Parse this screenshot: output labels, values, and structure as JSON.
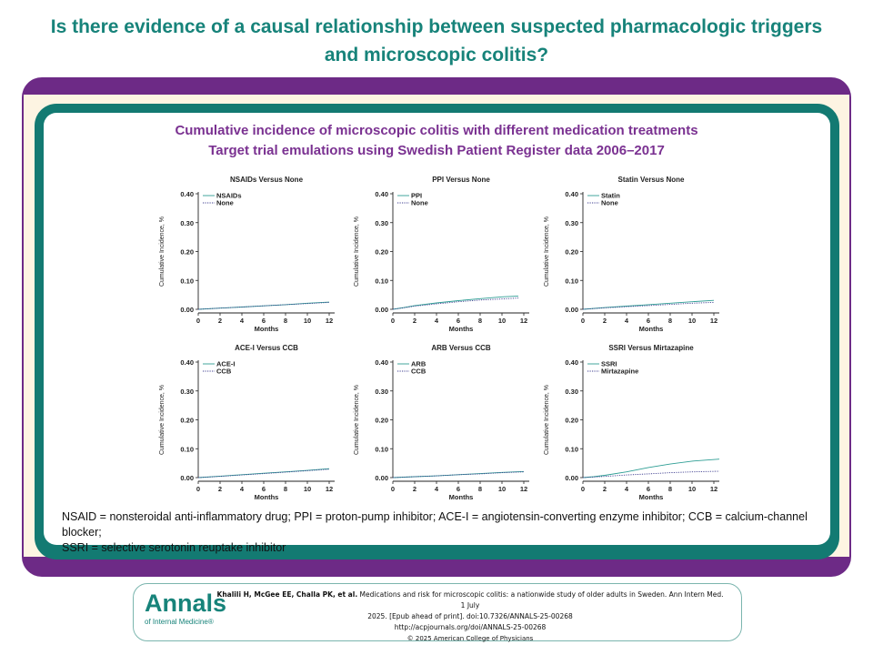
{
  "header": {
    "title_line1": "Is there evidence of a causal relationship between suspected pharmacologic triggers",
    "title_line2": "and microscopic colitis?"
  },
  "panel": {
    "subtitle_line1": "Cumulative incidence of microscopic colitis with different medication treatments",
    "subtitle_line2": "Target trial emulations using Swedish Patient Register data 2006–2017"
  },
  "chart_data": [
    {
      "type": "line",
      "title": "NSAIDs Versus None",
      "xlabel": "Months",
      "ylabel": "Cumulative Incidence, %",
      "xlim": [
        0,
        12.5
      ],
      "ylim": [
        0,
        0.4
      ],
      "xticks": [
        "0",
        "2",
        "4",
        "6",
        "8",
        "10",
        "12"
      ],
      "yticks": [
        "0.00",
        "0.10",
        "0.20",
        "0.30",
        "0.40"
      ],
      "legend": "top-left",
      "series": [
        {
          "name": "NSAIDs",
          "color": "#2e9e94",
          "style": "solid",
          "x": [
            0,
            2,
            4,
            6,
            8,
            10,
            12
          ],
          "y": [
            0.0,
            0.004,
            0.008,
            0.012,
            0.016,
            0.021,
            0.025
          ]
        },
        {
          "name": "None",
          "color": "#3d3d8f",
          "style": "dotted",
          "x": [
            0,
            2,
            4,
            6,
            8,
            10,
            12
          ],
          "y": [
            0.0,
            0.004,
            0.008,
            0.012,
            0.016,
            0.02,
            0.024
          ]
        }
      ]
    },
    {
      "type": "line",
      "title": "PPI Versus None",
      "xlabel": "Months",
      "ylabel": "Cumulative Incidence, %",
      "xlim": [
        0,
        12.5
      ],
      "ylim": [
        0,
        0.4
      ],
      "xticks": [
        "0",
        "2",
        "4",
        "6",
        "8",
        "10",
        "12"
      ],
      "yticks": [
        "0.00",
        "0.10",
        "0.20",
        "0.30",
        "0.40"
      ],
      "legend": "top-left",
      "series": [
        {
          "name": "PPI",
          "color": "#2e9e94",
          "style": "solid",
          "x": [
            0,
            1,
            2,
            4,
            6,
            8,
            10,
            11.5
          ],
          "y": [
            0.0,
            0.006,
            0.013,
            0.022,
            0.03,
            0.037,
            0.043,
            0.046
          ]
        },
        {
          "name": "None",
          "color": "#3d3d8f",
          "style": "dotted",
          "x": [
            0,
            1,
            2,
            4,
            6,
            8,
            10,
            11.5
          ],
          "y": [
            0.0,
            0.005,
            0.011,
            0.019,
            0.026,
            0.032,
            0.036,
            0.039
          ]
        }
      ]
    },
    {
      "type": "line",
      "title": "Statin Versus None",
      "xlabel": "Months",
      "ylabel": "Cumulative Incidence, %",
      "xlim": [
        0,
        12.5
      ],
      "ylim": [
        0,
        0.4
      ],
      "xticks": [
        "0",
        "2",
        "4",
        "6",
        "8",
        "10",
        "12"
      ],
      "yticks": [
        "0.00",
        "0.10",
        "0.20",
        "0.30",
        "0.40"
      ],
      "legend": "top-left",
      "series": [
        {
          "name": "Statin",
          "color": "#2e9e94",
          "style": "solid",
          "x": [
            0,
            2,
            4,
            6,
            8,
            10,
            12
          ],
          "y": [
            0.0,
            0.006,
            0.011,
            0.016,
            0.021,
            0.026,
            0.031
          ]
        },
        {
          "name": "None",
          "color": "#3d3d8f",
          "style": "dotted",
          "x": [
            0,
            2,
            4,
            6,
            8,
            10,
            12
          ],
          "y": [
            0.0,
            0.005,
            0.009,
            0.013,
            0.017,
            0.021,
            0.024
          ]
        }
      ]
    },
    {
      "type": "line",
      "title": "ACE-I Versus CCB",
      "xlabel": "Months",
      "ylabel": "Cumulative Incidence, %",
      "xlim": [
        0,
        12.5
      ],
      "ylim": [
        0,
        0.4
      ],
      "xticks": [
        "0",
        "2",
        "4",
        "6",
        "8",
        "10",
        "12"
      ],
      "yticks": [
        "0.00",
        "0.10",
        "0.20",
        "0.30",
        "0.40"
      ],
      "legend": "top-left",
      "series": [
        {
          "name": "ACE-I",
          "color": "#2e9e94",
          "style": "solid",
          "x": [
            0,
            2,
            4,
            6,
            8,
            10,
            12
          ],
          "y": [
            0.0,
            0.005,
            0.01,
            0.015,
            0.02,
            0.025,
            0.031
          ]
        },
        {
          "name": "CCB",
          "color": "#3d3d8f",
          "style": "dotted",
          "x": [
            0,
            2,
            4,
            6,
            8,
            10,
            12
          ],
          "y": [
            0.0,
            0.004,
            0.009,
            0.014,
            0.019,
            0.024,
            0.029
          ]
        }
      ]
    },
    {
      "type": "line",
      "title": "ARB Versus CCB",
      "xlabel": "Months",
      "ylabel": "Cumulative Incidence, %",
      "xlim": [
        0,
        12.5
      ],
      "ylim": [
        0,
        0.4
      ],
      "xticks": [
        "0",
        "2",
        "4",
        "6",
        "8",
        "10",
        "12"
      ],
      "yticks": [
        "0.00",
        "0.10",
        "0.20",
        "0.30",
        "0.40"
      ],
      "legend": "top-left",
      "series": [
        {
          "name": "ARB",
          "color": "#2e9e94",
          "style": "solid",
          "x": [
            0,
            2,
            4,
            6,
            8,
            10,
            12
          ],
          "y": [
            0.0,
            0.003,
            0.006,
            0.01,
            0.014,
            0.018,
            0.021
          ]
        },
        {
          "name": "CCB",
          "color": "#3d3d8f",
          "style": "dotted",
          "x": [
            0,
            2,
            4,
            6,
            8,
            10,
            12
          ],
          "y": [
            0.0,
            0.003,
            0.006,
            0.01,
            0.013,
            0.017,
            0.02
          ]
        }
      ]
    },
    {
      "type": "line",
      "title": "SSRI Versus Mirtazapine",
      "xlabel": "Months",
      "ylabel": "Cumulative Incidence, %",
      "xlim": [
        0,
        12.5
      ],
      "ylim": [
        0,
        0.4
      ],
      "xticks": [
        "0",
        "2",
        "4",
        "6",
        "8",
        "10",
        "12"
      ],
      "yticks": [
        "0.00",
        "0.10",
        "0.20",
        "0.30",
        "0.40"
      ],
      "legend": "top-left",
      "series": [
        {
          "name": "SSRI",
          "color": "#2e9e94",
          "style": "solid",
          "x": [
            0,
            1,
            2,
            4,
            6,
            8,
            10,
            12.5
          ],
          "y": [
            0.0,
            0.003,
            0.008,
            0.02,
            0.035,
            0.047,
            0.057,
            0.064
          ]
        },
        {
          "name": "Mirtazapine",
          "color": "#3d3d8f",
          "style": "dotted",
          "x": [
            0,
            2,
            4,
            6,
            8,
            10,
            12.5
          ],
          "y": [
            0.0,
            0.004,
            0.009,
            0.013,
            0.017,
            0.02,
            0.022
          ]
        }
      ]
    }
  ],
  "footnote": {
    "abbreviations_line1": "NSAID = nonsteroidal anti-inflammatory drug; PPI = proton-pump inhibitor; ACE-I = angiotensin-converting enzyme inhibitor; CCB = calcium-channel blocker;",
    "abbreviations_line2": "SSRI = selective serotonin reuptake inhibitor"
  },
  "citation": {
    "logo_main": "Annals",
    "logo_sub": "of Internal Medicine®",
    "authors": "Khalili H, McGee EE, Challa PK, et al.",
    "ref_line1_rest": " Medications and risk for microscopic colitis: a nationwide study of older adults in Sweden. Ann Intern Med. 1 July",
    "ref_line2": "2025. [Epub ahead of print]. doi:10.7326/ANNALS-25-00268",
    "url": "http://acpjournals.org/doi/ANNALS-25-00268",
    "copyright": "© 2025 American College of Physicians"
  }
}
